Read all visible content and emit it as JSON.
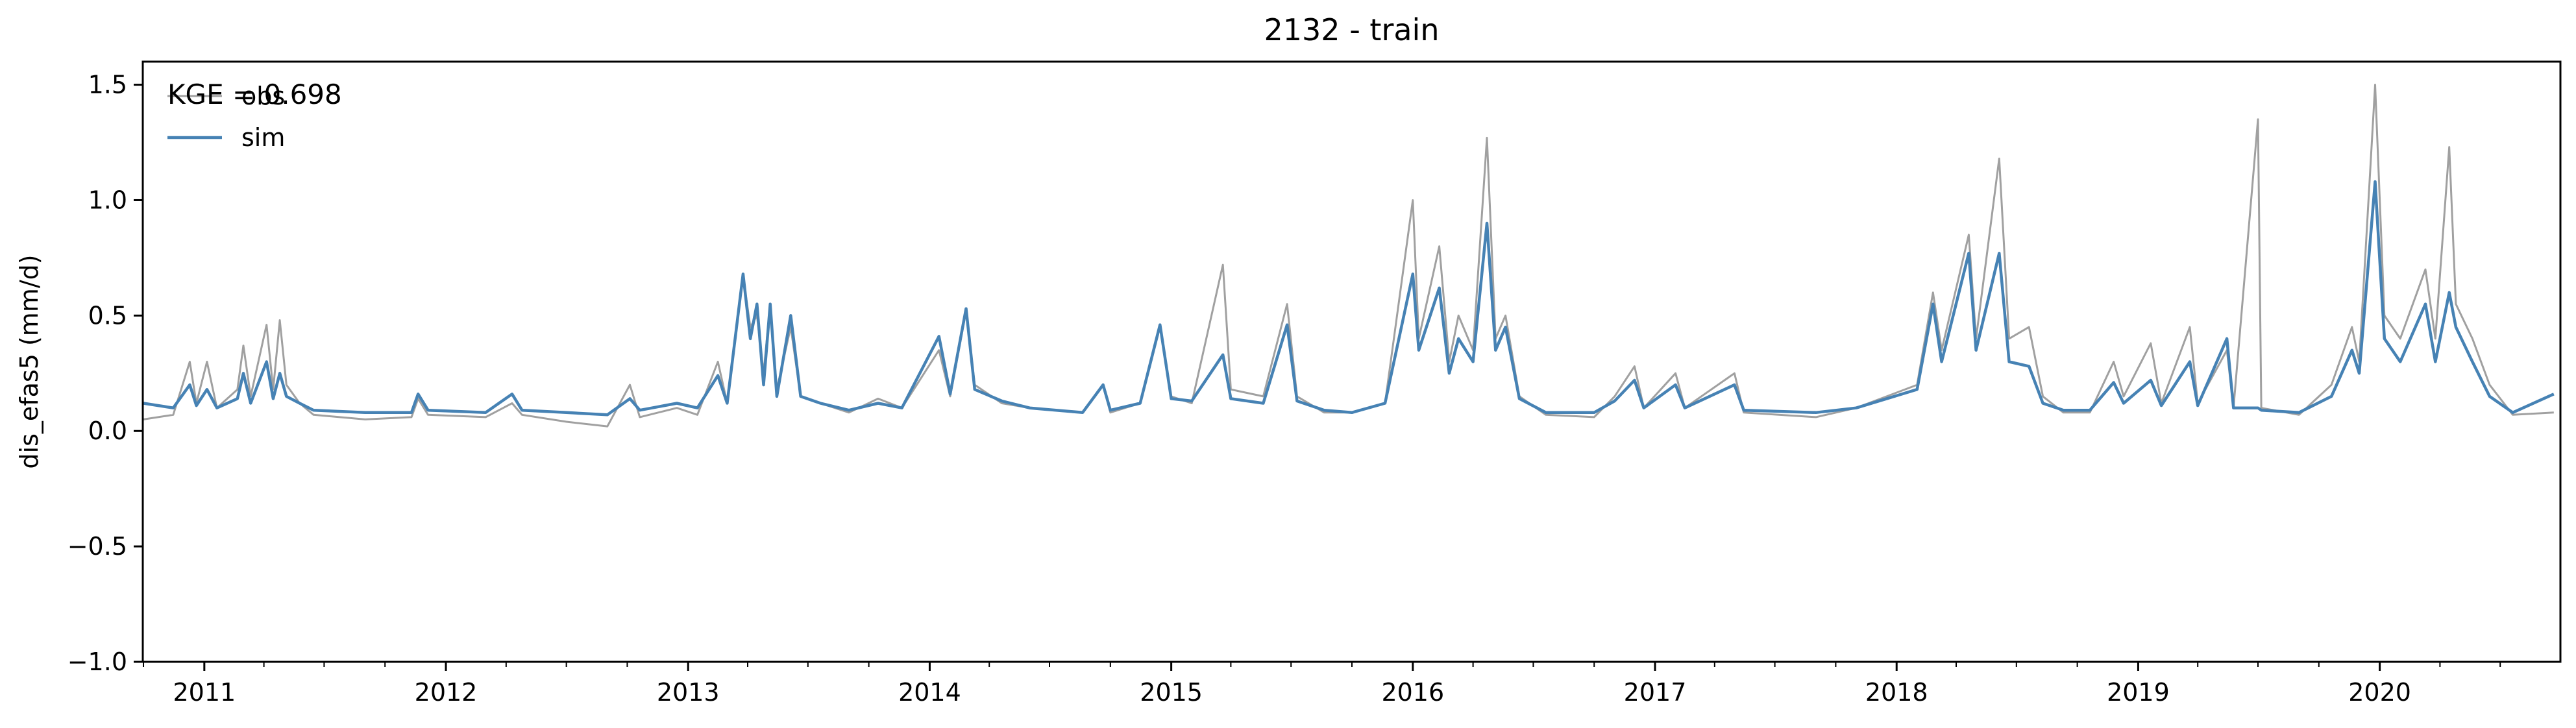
{
  "chart_data": {
    "type": "line",
    "title": "2132 - train",
    "ylabel": "dis_efas5 (mm/d)",
    "xlabel": "",
    "annotation": "KGE = 0.698",
    "xlim": [
      "2010-09-30",
      "2020-09-30"
    ],
    "ylim": [
      -1.0,
      1.6
    ],
    "yticks": [
      -1.0,
      -0.5,
      0.0,
      0.5,
      1.0,
      1.5
    ],
    "ytick_labels": [
      "−1.0",
      "−0.5",
      "0.0",
      "0.5",
      "1.0",
      "1.5"
    ],
    "xticks": [
      "2011-01-01",
      "2012-01-01",
      "2013-01-01",
      "2014-01-01",
      "2015-01-01",
      "2016-01-01",
      "2017-01-01",
      "2018-01-01",
      "2019-01-01",
      "2020-01-01"
    ],
    "xtick_labels": [
      "2011",
      "2012",
      "2013",
      "2014",
      "2015",
      "2016",
      "2017",
      "2018",
      "2019",
      "2020"
    ],
    "grid": false,
    "legend": "top-left",
    "series": [
      {
        "name": "obs",
        "color": "#a0a0a0",
        "points": [
          [
            "2010-10-01",
            0.05
          ],
          [
            "2010-11-15",
            0.07
          ],
          [
            "2010-12-10",
            0.3
          ],
          [
            "2010-12-20",
            0.12
          ],
          [
            "2011-01-05",
            0.3
          ],
          [
            "2011-01-20",
            0.1
          ],
          [
            "2011-02-20",
            0.18
          ],
          [
            "2011-03-01",
            0.37
          ],
          [
            "2011-03-12",
            0.15
          ],
          [
            "2011-04-05",
            0.46
          ],
          [
            "2011-04-15",
            0.18
          ],
          [
            "2011-04-25",
            0.48
          ],
          [
            "2011-05-05",
            0.2
          ],
          [
            "2011-05-25",
            0.12
          ],
          [
            "2011-06-15",
            0.07
          ],
          [
            "2011-09-01",
            0.05
          ],
          [
            "2011-11-10",
            0.06
          ],
          [
            "2011-11-20",
            0.14
          ],
          [
            "2011-12-05",
            0.07
          ],
          [
            "2012-03-01",
            0.06
          ],
          [
            "2012-04-10",
            0.12
          ],
          [
            "2012-04-25",
            0.07
          ],
          [
            "2012-07-01",
            0.04
          ],
          [
            "2012-09-01",
            0.02
          ],
          [
            "2012-10-05",
            0.2
          ],
          [
            "2012-10-20",
            0.06
          ],
          [
            "2012-12-15",
            0.1
          ],
          [
            "2013-01-15",
            0.07
          ],
          [
            "2013-02-15",
            0.3
          ],
          [
            "2013-03-01",
            0.12
          ],
          [
            "2013-03-25",
            0.67
          ],
          [
            "2013-04-05",
            0.45
          ],
          [
            "2013-04-15",
            0.5
          ],
          [
            "2013-04-25",
            0.25
          ],
          [
            "2013-05-05",
            0.55
          ],
          [
            "2013-05-15",
            0.18
          ],
          [
            "2013-06-05",
            0.45
          ],
          [
            "2013-06-20",
            0.15
          ],
          [
            "2013-07-20",
            0.12
          ],
          [
            "2013-09-01",
            0.08
          ],
          [
            "2013-10-15",
            0.14
          ],
          [
            "2013-11-20",
            0.1
          ],
          [
            "2014-01-15",
            0.35
          ],
          [
            "2014-02-01",
            0.15
          ],
          [
            "2014-02-25",
            0.52
          ],
          [
            "2014-03-10",
            0.2
          ],
          [
            "2014-04-20",
            0.12
          ],
          [
            "2014-06-01",
            0.1
          ],
          [
            "2014-08-20",
            0.08
          ],
          [
            "2014-09-20",
            0.2
          ],
          [
            "2014-10-01",
            0.08
          ],
          [
            "2014-11-15",
            0.12
          ],
          [
            "2014-12-15",
            0.45
          ],
          [
            "2015-01-01",
            0.15
          ],
          [
            "2015-02-01",
            0.12
          ],
          [
            "2015-03-20",
            0.72
          ],
          [
            "2015-04-01",
            0.18
          ],
          [
            "2015-05-20",
            0.15
          ],
          [
            "2015-06-25",
            0.55
          ],
          [
            "2015-07-10",
            0.15
          ],
          [
            "2015-08-20",
            0.08
          ],
          [
            "2015-10-01",
            0.08
          ],
          [
            "2015-11-20",
            0.12
          ],
          [
            "2016-01-01",
            1.0
          ],
          [
            "2016-01-10",
            0.4
          ],
          [
            "2016-02-10",
            0.8
          ],
          [
            "2016-02-25",
            0.3
          ],
          [
            "2016-03-10",
            0.5
          ],
          [
            "2016-04-01",
            0.35
          ],
          [
            "2016-04-22",
            1.27
          ],
          [
            "2016-05-05",
            0.4
          ],
          [
            "2016-05-20",
            0.5
          ],
          [
            "2016-06-10",
            0.15
          ],
          [
            "2016-07-20",
            0.07
          ],
          [
            "2016-10-01",
            0.06
          ],
          [
            "2016-11-01",
            0.15
          ],
          [
            "2016-12-01",
            0.28
          ],
          [
            "2016-12-15",
            0.1
          ],
          [
            "2017-02-01",
            0.25
          ],
          [
            "2017-02-15",
            0.1
          ],
          [
            "2017-05-01",
            0.25
          ],
          [
            "2017-05-15",
            0.08
          ],
          [
            "2017-09-01",
            0.06
          ],
          [
            "2017-11-01",
            0.1
          ],
          [
            "2018-02-01",
            0.2
          ],
          [
            "2018-02-25",
            0.6
          ],
          [
            "2018-03-10",
            0.35
          ],
          [
            "2018-04-20",
            0.85
          ],
          [
            "2018-05-01",
            0.4
          ],
          [
            "2018-06-05",
            1.18
          ],
          [
            "2018-06-20",
            0.4
          ],
          [
            "2018-07-20",
            0.45
          ],
          [
            "2018-08-10",
            0.15
          ],
          [
            "2018-09-10",
            0.08
          ],
          [
            "2018-10-20",
            0.08
          ],
          [
            "2018-11-25",
            0.3
          ],
          [
            "2018-12-10",
            0.15
          ],
          [
            "2019-01-20",
            0.38
          ],
          [
            "2019-02-05",
            0.12
          ],
          [
            "2019-03-20",
            0.45
          ],
          [
            "2019-04-01",
            0.12
          ],
          [
            "2019-05-15",
            0.35
          ],
          [
            "2019-05-25",
            0.1
          ],
          [
            "2019-07-01",
            1.35
          ],
          [
            "2019-07-06",
            0.1
          ],
          [
            "2019-09-01",
            0.07
          ],
          [
            "2019-10-20",
            0.2
          ],
          [
            "2019-11-20",
            0.45
          ],
          [
            "2019-12-01",
            0.3
          ],
          [
            "2019-12-25",
            1.5
          ],
          [
            "2020-01-08",
            0.5
          ],
          [
            "2020-02-01",
            0.4
          ],
          [
            "2020-03-10",
            0.7
          ],
          [
            "2020-03-25",
            0.4
          ],
          [
            "2020-04-15",
            1.23
          ],
          [
            "2020-04-25",
            0.55
          ],
          [
            "2020-05-20",
            0.4
          ],
          [
            "2020-06-15",
            0.2
          ],
          [
            "2020-07-20",
            0.07
          ],
          [
            "2020-09-20",
            0.08
          ]
        ]
      },
      {
        "name": "sim",
        "color": "#4682b4",
        "points": [
          [
            "2010-10-01",
            0.12
          ],
          [
            "2010-11-15",
            0.1
          ],
          [
            "2010-12-10",
            0.2
          ],
          [
            "2010-12-20",
            0.11
          ],
          [
            "2011-01-05",
            0.18
          ],
          [
            "2011-01-20",
            0.1
          ],
          [
            "2011-02-20",
            0.14
          ],
          [
            "2011-03-01",
            0.25
          ],
          [
            "2011-03-12",
            0.12
          ],
          [
            "2011-04-05",
            0.3
          ],
          [
            "2011-04-15",
            0.14
          ],
          [
            "2011-04-25",
            0.25
          ],
          [
            "2011-05-05",
            0.15
          ],
          [
            "2011-05-25",
            0.12
          ],
          [
            "2011-06-15",
            0.09
          ],
          [
            "2011-09-01",
            0.08
          ],
          [
            "2011-11-10",
            0.08
          ],
          [
            "2011-11-20",
            0.16
          ],
          [
            "2011-12-05",
            0.09
          ],
          [
            "2012-03-01",
            0.08
          ],
          [
            "2012-04-10",
            0.16
          ],
          [
            "2012-04-25",
            0.09
          ],
          [
            "2012-07-01",
            0.08
          ],
          [
            "2012-09-01",
            0.07
          ],
          [
            "2012-10-05",
            0.14
          ],
          [
            "2012-10-20",
            0.09
          ],
          [
            "2012-12-15",
            0.12
          ],
          [
            "2013-01-15",
            0.1
          ],
          [
            "2013-02-15",
            0.24
          ],
          [
            "2013-03-01",
            0.12
          ],
          [
            "2013-03-25",
            0.68
          ],
          [
            "2013-04-05",
            0.4
          ],
          [
            "2013-04-15",
            0.55
          ],
          [
            "2013-04-25",
            0.2
          ],
          [
            "2013-05-05",
            0.55
          ],
          [
            "2013-05-15",
            0.15
          ],
          [
            "2013-06-05",
            0.5
          ],
          [
            "2013-06-20",
            0.15
          ],
          [
            "2013-07-20",
            0.12
          ],
          [
            "2013-09-01",
            0.09
          ],
          [
            "2013-10-15",
            0.12
          ],
          [
            "2013-11-20",
            0.1
          ],
          [
            "2014-01-15",
            0.41
          ],
          [
            "2014-02-01",
            0.16
          ],
          [
            "2014-02-25",
            0.53
          ],
          [
            "2014-03-10",
            0.18
          ],
          [
            "2014-04-20",
            0.13
          ],
          [
            "2014-06-01",
            0.1
          ],
          [
            "2014-08-20",
            0.08
          ],
          [
            "2014-09-20",
            0.2
          ],
          [
            "2014-10-01",
            0.09
          ],
          [
            "2014-11-15",
            0.12
          ],
          [
            "2014-12-15",
            0.46
          ],
          [
            "2015-01-01",
            0.14
          ],
          [
            "2015-02-01",
            0.13
          ],
          [
            "2015-03-20",
            0.33
          ],
          [
            "2015-04-01",
            0.14
          ],
          [
            "2015-05-20",
            0.12
          ],
          [
            "2015-06-25",
            0.46
          ],
          [
            "2015-07-10",
            0.13
          ],
          [
            "2015-08-20",
            0.09
          ],
          [
            "2015-10-01",
            0.08
          ],
          [
            "2015-11-20",
            0.12
          ],
          [
            "2016-01-01",
            0.68
          ],
          [
            "2016-01-10",
            0.35
          ],
          [
            "2016-02-10",
            0.62
          ],
          [
            "2016-02-25",
            0.25
          ],
          [
            "2016-03-10",
            0.4
          ],
          [
            "2016-04-01",
            0.3
          ],
          [
            "2016-04-22",
            0.9
          ],
          [
            "2016-05-05",
            0.35
          ],
          [
            "2016-05-20",
            0.45
          ],
          [
            "2016-06-10",
            0.14
          ],
          [
            "2016-07-20",
            0.08
          ],
          [
            "2016-10-01",
            0.08
          ],
          [
            "2016-11-01",
            0.13
          ],
          [
            "2016-12-01",
            0.22
          ],
          [
            "2016-12-15",
            0.1
          ],
          [
            "2017-02-01",
            0.2
          ],
          [
            "2017-02-15",
            0.1
          ],
          [
            "2017-05-01",
            0.2
          ],
          [
            "2017-05-15",
            0.09
          ],
          [
            "2017-09-01",
            0.08
          ],
          [
            "2017-11-01",
            0.1
          ],
          [
            "2018-02-01",
            0.18
          ],
          [
            "2018-02-25",
            0.55
          ],
          [
            "2018-03-10",
            0.3
          ],
          [
            "2018-04-20",
            0.77
          ],
          [
            "2018-05-01",
            0.35
          ],
          [
            "2018-06-05",
            0.77
          ],
          [
            "2018-06-20",
            0.3
          ],
          [
            "2018-07-20",
            0.28
          ],
          [
            "2018-08-10",
            0.12
          ],
          [
            "2018-09-10",
            0.09
          ],
          [
            "2018-10-20",
            0.09
          ],
          [
            "2018-11-25",
            0.21
          ],
          [
            "2018-12-10",
            0.12
          ],
          [
            "2019-01-20",
            0.22
          ],
          [
            "2019-02-05",
            0.11
          ],
          [
            "2019-03-20",
            0.3
          ],
          [
            "2019-04-01",
            0.11
          ],
          [
            "2019-05-15",
            0.4
          ],
          [
            "2019-05-25",
            0.1
          ],
          [
            "2019-07-01",
            0.1
          ],
          [
            "2019-07-06",
            0.09
          ],
          [
            "2019-09-01",
            0.08
          ],
          [
            "2019-10-20",
            0.15
          ],
          [
            "2019-11-20",
            0.35
          ],
          [
            "2019-12-01",
            0.25
          ],
          [
            "2019-12-25",
            1.08
          ],
          [
            "2020-01-08",
            0.4
          ],
          [
            "2020-02-01",
            0.3
          ],
          [
            "2020-03-10",
            0.55
          ],
          [
            "2020-03-25",
            0.3
          ],
          [
            "2020-04-15",
            0.6
          ],
          [
            "2020-04-25",
            0.45
          ],
          [
            "2020-05-20",
            0.3
          ],
          [
            "2020-06-15",
            0.15
          ],
          [
            "2020-07-20",
            0.08
          ],
          [
            "2020-09-20",
            0.16
          ]
        ]
      }
    ]
  }
}
